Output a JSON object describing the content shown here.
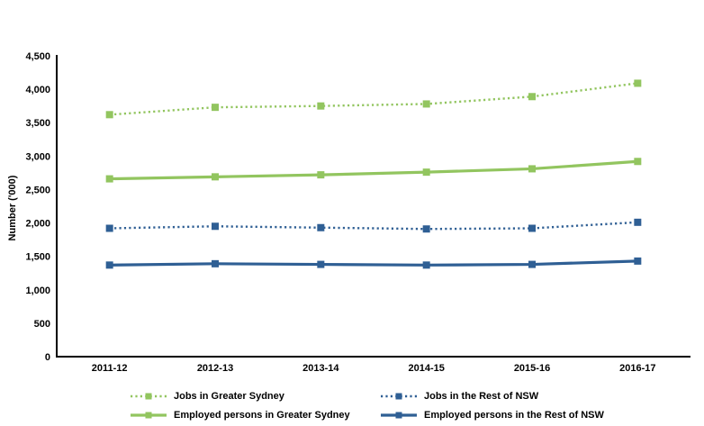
{
  "page": {
    "background": "#FFFFFF"
  },
  "chart_data": {
    "type": "line",
    "title": "",
    "xlabel": "",
    "ylabel": "Number ('000)",
    "categories": [
      "2011-12",
      "2012-13",
      "2013-14",
      "2014-15",
      "2015-16",
      "2016-17"
    ],
    "ylim": [
      0,
      4500
    ],
    "ytick_step": 500,
    "ytick_labels": [
      "0",
      "500",
      "1,000",
      "1,500",
      "2,000",
      "2,500",
      "3,000",
      "3,500",
      "4,000",
      "4,500"
    ],
    "grid": false,
    "legend_position": "bottom",
    "axis_color": "#000000",
    "series": [
      {
        "name": "Jobs in Greater Sydney",
        "color": "#92C55F",
        "line_style": "dotted",
        "marker": "square",
        "values": [
          3620,
          3730,
          3750,
          3780,
          3890,
          4090
        ]
      },
      {
        "name": "Jobs in the Rest of NSW",
        "color": "#2F5F94",
        "line_style": "dotted",
        "marker": "square",
        "values": [
          1920,
          1950,
          1930,
          1910,
          1920,
          2010
        ]
      },
      {
        "name": "Employed persons in Greater Sydney",
        "color": "#92C55F",
        "line_style": "solid",
        "marker": "square",
        "values": [
          2660,
          2690,
          2720,
          2760,
          2810,
          2920
        ]
      },
      {
        "name": "Employed persons in the Rest of NSW",
        "color": "#2F5F94",
        "line_style": "solid",
        "marker": "square",
        "values": [
          1370,
          1390,
          1380,
          1370,
          1380,
          1430
        ]
      }
    ]
  }
}
